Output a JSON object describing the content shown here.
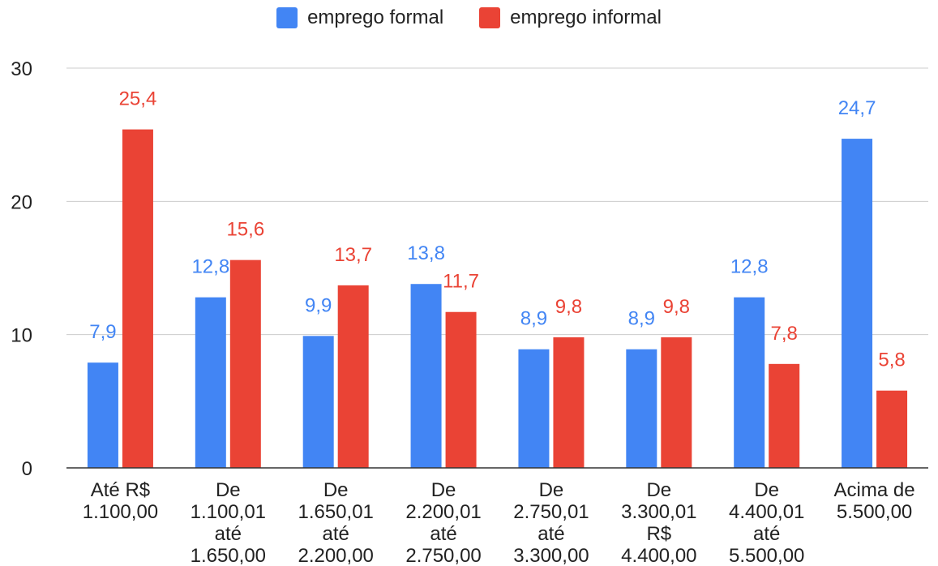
{
  "chart_data": {
    "type": "bar",
    "categories": [
      [
        "Até R$",
        "1.100,00"
      ],
      [
        "De",
        "1.100,01",
        "até",
        "1.650,00"
      ],
      [
        "De",
        "1.650,01",
        "até",
        "2.200,00"
      ],
      [
        "De",
        "2.200,01",
        "até",
        "2.750,00"
      ],
      [
        "De",
        "2.750,01",
        "até",
        "3.300,00"
      ],
      [
        "De",
        "3.300,01",
        "R$",
        "4.400,00"
      ],
      [
        "De",
        "4.400,01",
        "até",
        "5.500,00"
      ],
      [
        "Acima de",
        "5.500,00"
      ]
    ],
    "series": [
      {
        "name": "emprego formal",
        "color": "#4285f4",
        "values": [
          7.9,
          12.8,
          9.9,
          13.8,
          8.9,
          8.9,
          12.8,
          24.7
        ],
        "labels": [
          "7,9",
          "12,8",
          "9,9",
          "13,8",
          "8,9",
          "8,9",
          "12,8",
          "24,7"
        ]
      },
      {
        "name": "emprego informal",
        "color": "#ea4335",
        "values": [
          25.4,
          15.6,
          13.7,
          11.7,
          9.8,
          9.8,
          7.8,
          5.8
        ],
        "labels": [
          "25,4",
          "15,6",
          "13,7",
          "11,7",
          "9,8",
          "9,8",
          "7,8",
          "5,8"
        ]
      }
    ],
    "ylim": [
      0,
      30
    ],
    "yticks": [
      0,
      10,
      20,
      30
    ],
    "grid": true,
    "legend": "top-center"
  }
}
